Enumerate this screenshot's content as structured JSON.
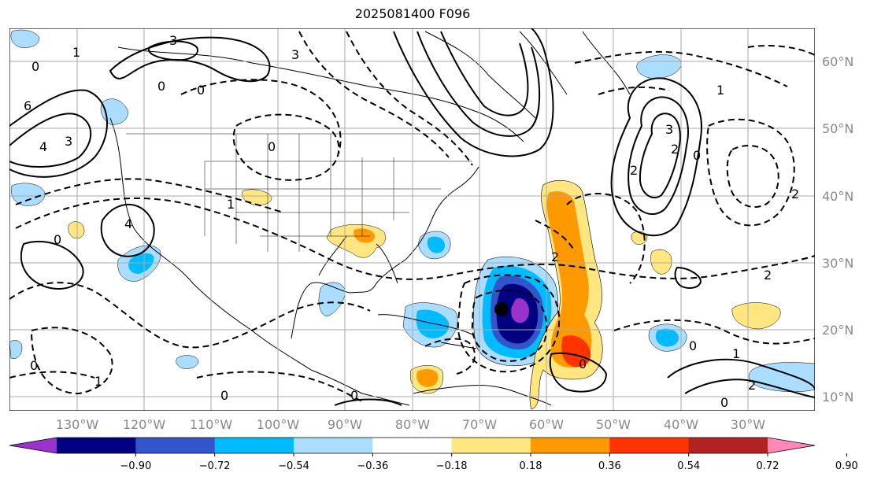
{
  "title": "2025081400 F096",
  "lat_labels": [
    "60°N",
    "50°N",
    "40°N",
    "30°N",
    "20°N",
    "10°N"
  ],
  "lon_labels": [
    "130°W",
    "120°W",
    "110°W",
    "100°W",
    "90°W",
    "80°W",
    "70°W",
    "60°W",
    "50°W",
    "40°W",
    "30°W"
  ],
  "colorbar": {
    "ticks": [
      "−0.90",
      "−0.72",
      "−0.54",
      "−0.36",
      "−0.18",
      "0.18",
      "0.36",
      "0.54",
      "0.72",
      "0.90"
    ],
    "colors": [
      "#9933cc",
      "#000080",
      "#3355cc",
      "#00bbff",
      "#aaddff",
      "#ffffff",
      "#ffe680",
      "#ff9900",
      "#ff3300",
      "#b22222",
      "#ff88bb"
    ]
  },
  "contour_labels": [
    "3",
    "0",
    "6",
    "4",
    "3",
    "0",
    "1",
    "0",
    "4",
    "3",
    "0",
    "1",
    "2",
    "0",
    "2",
    "3",
    "2",
    "0",
    "1",
    "2",
    "0",
    "1",
    "0",
    "0",
    "0",
    "2",
    "1",
    "0",
    "0",
    "2"
  ]
}
